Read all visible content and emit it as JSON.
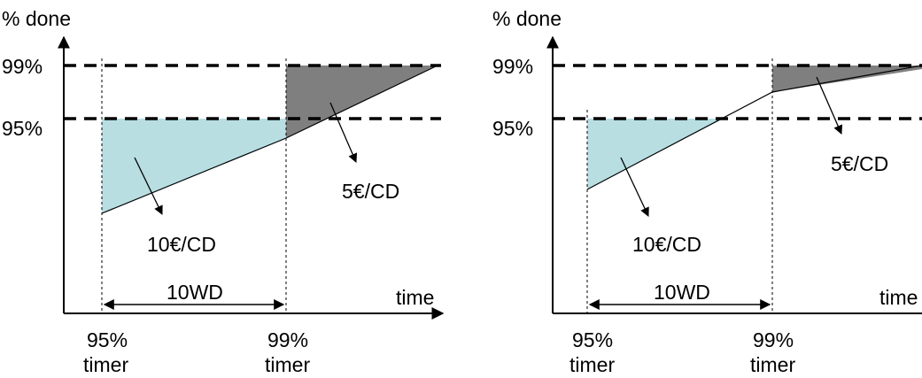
{
  "colors": {
    "light_region": "#b8dee2",
    "dark_region": "#7f7f7f",
    "line": "#000000",
    "background": "#ffffff"
  },
  "left": {
    "y_axis_label": "% done",
    "x_axis_label": "time",
    "tick_99": "99%",
    "tick_95": "95%",
    "penalty_high": "10€/CD",
    "penalty_low": "5€/CD",
    "duration": "10WD",
    "timer_95_pct": "95%",
    "timer_95_word": "timer",
    "timer_99_pct": "99%",
    "timer_99_word": "timer"
  },
  "right": {
    "y_axis_label": "% done",
    "x_axis_label": "time",
    "tick_99": "99%",
    "tick_95": "95%",
    "penalty_high": "10€/CD",
    "penalty_low": "5€/CD",
    "duration": "10WD",
    "timer_95_pct": "95%",
    "timer_95_word": "timer",
    "timer_99_pct": "99%",
    "timer_99_word": "timer"
  }
}
